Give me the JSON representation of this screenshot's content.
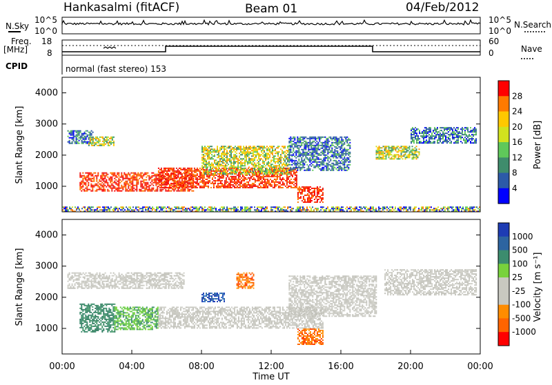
{
  "header": {
    "station": "Hankasalmi (fitACF)",
    "beam": "Beam 01",
    "date": "04/Feb/2012"
  },
  "status_panels": {
    "nsky_label": "N.Sky",
    "nsky_ticks": [
      "10^5",
      "10^0"
    ],
    "nsearch_label": "N.Search",
    "nsearch_ticks": [
      "10^5",
      "10^0"
    ],
    "freq_label": "Freq.",
    "freq_unit": "[MHz]",
    "freq_ticks": [
      "18",
      "8"
    ],
    "nave_label": "Nave",
    "nave_ticks": [
      "60",
      "0"
    ],
    "cpid_label": "CPID",
    "cpid_value": "normal (fast stereo) 153"
  },
  "chart_data": [
    {
      "type": "heatmap",
      "name": "power",
      "ylabel": "Slant Range [km]",
      "ylim": [
        180,
        4500
      ],
      "yticks": [
        1000,
        2000,
        3000,
        4000
      ],
      "xlim": [
        0,
        24
      ],
      "colorbar": {
        "label": "Power [dB]",
        "ticks": [
          "28",
          "24",
          "20",
          "16",
          "12",
          "8",
          "4"
        ],
        "colors": [
          "#ff0000",
          "#ff7a00",
          "#ffc800",
          "#d2e21e",
          "#5fc85a",
          "#3f8c6c",
          "#2c5aa8",
          "#0000ff"
        ]
      },
      "echo_regions": [
        {
          "t0": 0.3,
          "t1": 1.8,
          "r0": 2400,
          "r1": 2800,
          "level": "low"
        },
        {
          "t0": 1.5,
          "t1": 3.0,
          "r0": 2300,
          "r1": 2600,
          "level": "medium"
        },
        {
          "t0": 1.0,
          "t1": 7.5,
          "r0": 850,
          "r1": 1450,
          "level": "high"
        },
        {
          "t0": 5.5,
          "t1": 13.5,
          "r0": 950,
          "r1": 1600,
          "level": "high"
        },
        {
          "t0": 8.0,
          "t1": 13.0,
          "r0": 1400,
          "r1": 2300,
          "level": "medium"
        },
        {
          "t0": 13.5,
          "t1": 15.0,
          "r0": 500,
          "r1": 1000,
          "level": "high"
        },
        {
          "t0": 13.0,
          "t1": 16.5,
          "r0": 1500,
          "r1": 2600,
          "level": "low"
        },
        {
          "t0": 18.0,
          "t1": 20.5,
          "r0": 1900,
          "r1": 2300,
          "level": "medium"
        },
        {
          "t0": 20.0,
          "t1": 23.8,
          "r0": 2400,
          "r1": 2900,
          "level": "low"
        },
        {
          "t0": 0.0,
          "t1": 24.0,
          "r0": 180,
          "r1": 350,
          "level": "mixed"
        }
      ]
    },
    {
      "type": "heatmap",
      "name": "velocity",
      "ylabel": "Slant Range [km]",
      "ylim": [
        180,
        4500
      ],
      "yticks": [
        1000,
        2000,
        3000,
        4000
      ],
      "xlim": [
        0,
        24
      ],
      "xlabel": "Time UT",
      "xticks": [
        "00:00",
        "04:00",
        "08:00",
        "12:00",
        "16:00",
        "20:00",
        "00:00"
      ],
      "colorbar": {
        "label": "Velocity [m s⁻¹]",
        "ticks": [
          "1000",
          "500",
          "100",
          "25",
          "-25",
          "-100",
          "-500",
          "-1000"
        ],
        "colors": [
          "#1e3cb4",
          "#2d64a0",
          "#3c8c6e",
          "#78d23c",
          "#c8c8c0",
          "#c8c8c0",
          "#ff8c00",
          "#ff6400",
          "#ff0000"
        ]
      },
      "echo_regions": [
        {
          "t0": 0.3,
          "t1": 7.0,
          "r0": 2300,
          "r1": 2800,
          "level": "grey"
        },
        {
          "t0": 1.0,
          "t1": 3.0,
          "r0": 900,
          "r1": 1800,
          "level": "green-dark"
        },
        {
          "t0": 3.0,
          "t1": 5.5,
          "r0": 950,
          "r1": 1700,
          "level": "green-light"
        },
        {
          "t0": 5.5,
          "t1": 15.0,
          "r0": 1000,
          "r1": 1700,
          "level": "grey"
        },
        {
          "t0": 8.0,
          "t1": 9.3,
          "r0": 1850,
          "r1": 2150,
          "level": "blue"
        },
        {
          "t0": 10.0,
          "t1": 11.0,
          "r0": 2300,
          "r1": 2800,
          "level": "orange"
        },
        {
          "t0": 13.5,
          "t1": 15.0,
          "r0": 500,
          "r1": 1000,
          "level": "orange"
        },
        {
          "t0": 13.0,
          "t1": 18.0,
          "r0": 1400,
          "r1": 2700,
          "level": "grey"
        },
        {
          "t0": 18.5,
          "t1": 23.8,
          "r0": 2100,
          "r1": 2900,
          "level": "grey"
        }
      ]
    }
  ]
}
